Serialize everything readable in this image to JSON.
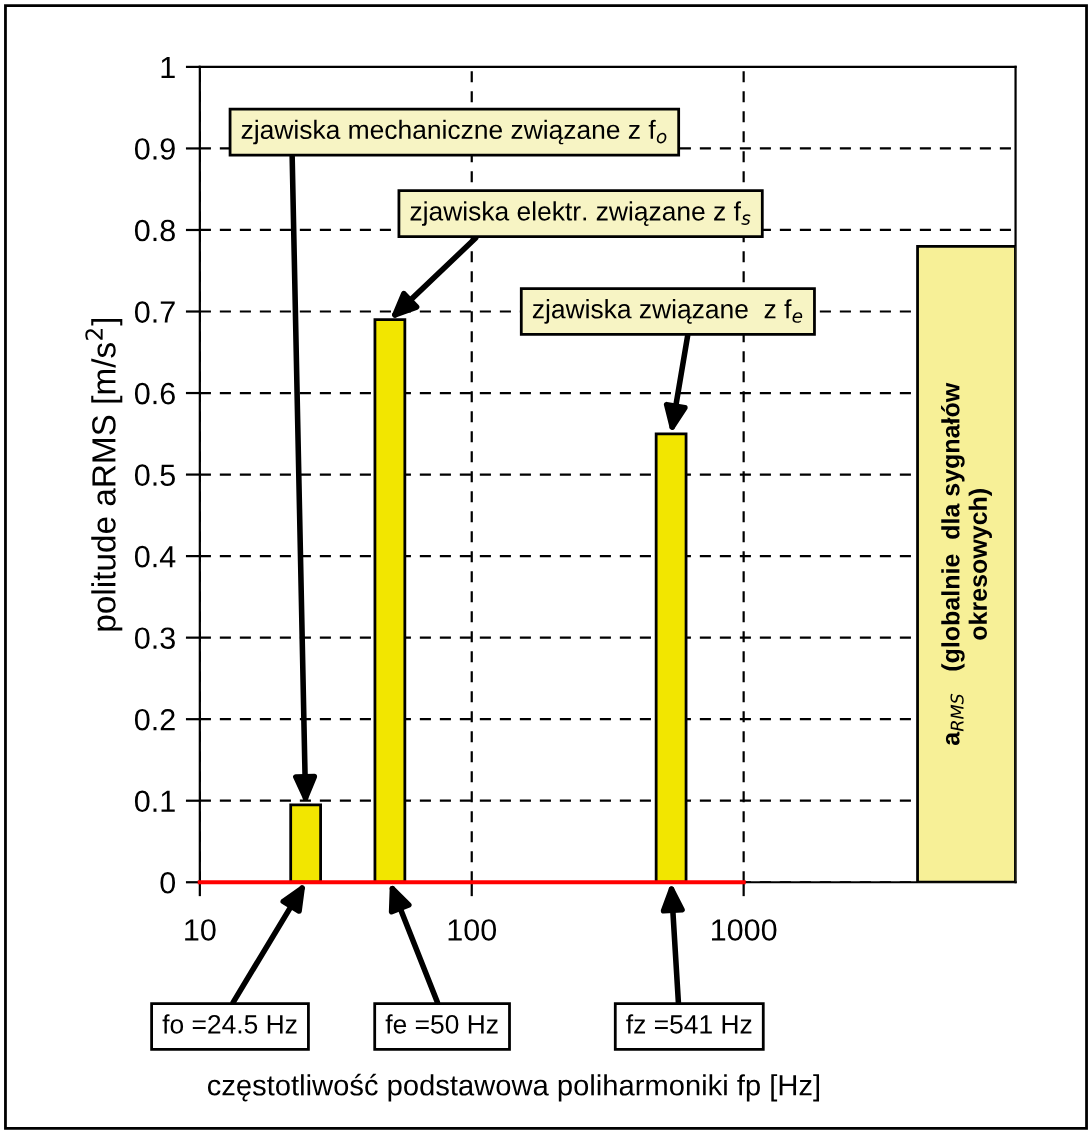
{
  "chart_data": {
    "type": "bar",
    "xlabel": "częstotliwość podstawowa poliharmoniki fp [Hz]",
    "ylabel": "politude aRMS [m/s$^{2}$]",
    "log": "x",
    "xlim": [
      10,
      10000
    ],
    "xticks": [
      10,
      100,
      1000
    ],
    "ylim": [
      0,
      1
    ],
    "yticks": [
      0,
      0.1,
      0.2,
      0.3,
      0.4,
      0.5,
      0.6,
      0.7,
      0.8,
      0.9,
      1
    ],
    "grid": true,
    "series": [
      {
        "color": "#f2e600",
        "x": [
          24.5,
          50,
          541
        ],
        "values": [
          0.095,
          0.69,
          0.55
        ]
      },
      {
        "name": "a$_{RMS}$   (globalnie  dla sygnałów\nokresowych)",
        "color": "#f7f097",
        "x": [
          6600
        ],
        "values": [
          0.78
        ]
      },
      {
        "type": "line",
        "color": "#ff0000",
        "x": [
          10,
          1000
        ],
        "values": [
          0,
          0
        ]
      }
    ],
    "annotations": [
      {
        "text": "zjawiska mechaniczne związane z f$_{o}$",
        "x": 24.5,
        "y": 0.095
      },
      {
        "text": "zjawiska elektr. związane z f$_{s}$",
        "x": 50,
        "y": 0.69
      },
      {
        "text": "zjawiska związane  z f$_{e}$",
        "x": 541,
        "y": 0.55
      },
      {
        "text": "fo =24.5 Hz",
        "x": 24.5,
        "y": 0
      },
      {
        "text": "fe =50 Hz",
        "x": 50,
        "y": 0
      },
      {
        "text": "fz =541 Hz",
        "x": 541,
        "y": 0
      }
    ]
  }
}
